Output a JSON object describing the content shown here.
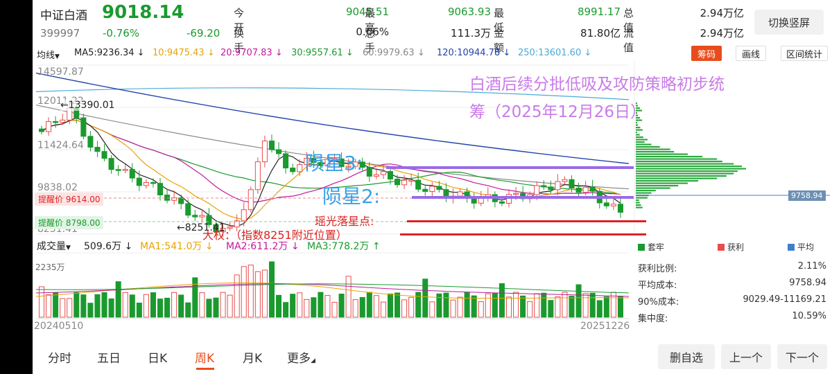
{
  "header": {
    "name": "中证白酒",
    "price": "9018.14",
    "code": "399997",
    "change_pct": "-0.76%",
    "change": "-69.20",
    "open_label": "今开",
    "open_value": "9045.51",
    "high_label": "最高",
    "high_value": "9063.93",
    "low_label": "最低",
    "low_value": "8991.17",
    "mcap_label": "总值",
    "mcap_value": "2.94万亿",
    "turnover_label": "换手",
    "turnover_value": "0.66%",
    "volume_label": "总手",
    "volume_value": "111.3万",
    "amount_label": "金额",
    "amount_value": "81.80亿",
    "float_label": "流值",
    "float_value": "2.94万亿",
    "switch_label": "切换竖屏"
  },
  "ma_bar": {
    "kline_type": "均线",
    "ma5": "MA5:9236.34",
    "ma10": "10:9475.43",
    "ma20": "20:9707.83",
    "ma30": "30:9557.61",
    "ma60": "60:9979.63",
    "ma120": "120:10944.78",
    "ma250": "250:13601.60",
    "arrow_down": "↓",
    "chips_label": "筹码",
    "draw_label": "画线",
    "range_label": "区间统计",
    "colors": {
      "ma5": "#222222",
      "ma10": "#e8a300",
      "ma20": "#c2189b",
      "ma30": "#1a9a2e",
      "ma60": "#888888",
      "ma120": "#2244aa",
      "ma250": "#4aaad8"
    }
  },
  "chart": {
    "y_labels": [
      "14597.87",
      "12011.22",
      "11424.64",
      "9838.02",
      "8251.41"
    ],
    "high_mark": "13390.01",
    "low_mark": "8251.41",
    "reminder1_label": "提醒价",
    "reminder1_value": "9614.00",
    "reminder2_label": "提醒价",
    "reminder2_value": "8798.00",
    "avg_cost_tag": "9758.94",
    "vol_y_label": "2235万",
    "date_start": "20240510",
    "date_end": "20251226"
  },
  "chart_data": {
    "type": "candlestick",
    "title": "中证白酒 周K",
    "ylim": [
      8251.41,
      14597.87
    ],
    "period": [
      "20240510",
      "20251226"
    ],
    "last_close": 9018.14
  },
  "annotations": {
    "title_line1": "白酒后续分批低吸及攻防策略初步统",
    "title_line2": "筹（2025年12月26日）",
    "star3": "陨星3:",
    "star2": "陨星2:",
    "landing": "瑶光落星点:",
    "big_power": "大权：（指数8251附近位置）"
  },
  "volume_bar": {
    "label": "成交量",
    "vol": "509.6万",
    "ma1": "MA1:541.0万",
    "ma2": "MA2:611.2万",
    "ma3": "MA3:778.2万",
    "down": "↓",
    "up": "↑"
  },
  "chips": {
    "legend_trapped": "套牢",
    "legend_profit": "获利",
    "legend_avg": "平均",
    "profit_ratio_label": "获利比例:",
    "profit_ratio_value": "2.11%",
    "avg_cost_label": "平均成本:",
    "avg_cost_value": "9758.94",
    "cost90_label": "90%成本:",
    "cost90_value": "9029.49-11169.21",
    "concentration_label": "集中度:",
    "concentration_value": "10.59%"
  },
  "tabs": [
    "分时",
    "五日",
    "日K",
    "周K",
    "月K",
    "更多"
  ],
  "active_tab": "周K",
  "buttons": {
    "delete": "删自选",
    "prev": "上一个",
    "next": "下一个"
  }
}
